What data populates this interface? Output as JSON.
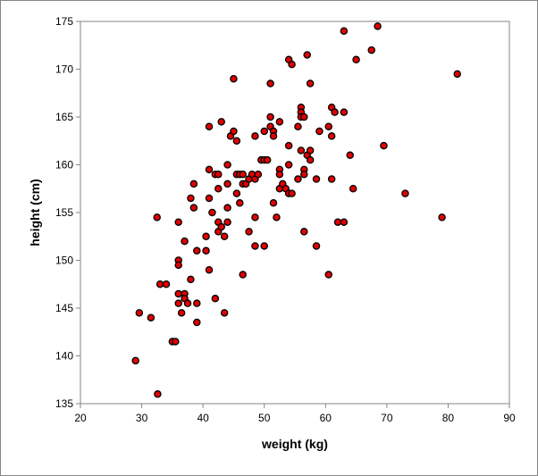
{
  "chart_data": {
    "type": "scatter",
    "title": "",
    "xlabel": "weight (kg)",
    "ylabel": "height (cm)",
    "xlim": [
      20,
      90
    ],
    "ylim": [
      135,
      175
    ],
    "xticks": [
      20,
      30,
      40,
      50,
      60,
      70,
      80,
      90
    ],
    "yticks": [
      135,
      140,
      145,
      150,
      155,
      160,
      165,
      170,
      175
    ],
    "grid": false,
    "legend": "none",
    "marker_fill": "#e00000",
    "marker_edge": "#000000",
    "points": [
      [
        29.0,
        139.5
      ],
      [
        29.6,
        144.5
      ],
      [
        31.5,
        144.0
      ],
      [
        32.5,
        154.5
      ],
      [
        32.6,
        136.0
      ],
      [
        33.0,
        147.5
      ],
      [
        34.0,
        147.5
      ],
      [
        35.0,
        141.5
      ],
      [
        35.5,
        141.5
      ],
      [
        36.0,
        154.0
      ],
      [
        36.0,
        150.0
      ],
      [
        36.0,
        149.5
      ],
      [
        36.0,
        146.5
      ],
      [
        36.0,
        145.5
      ],
      [
        36.5,
        144.5
      ],
      [
        37.0,
        146.5
      ],
      [
        37.0,
        152.0
      ],
      [
        37.0,
        146.0
      ],
      [
        37.5,
        145.5
      ],
      [
        38.0,
        156.5
      ],
      [
        38.0,
        148.0
      ],
      [
        38.5,
        158.0
      ],
      [
        38.5,
        155.5
      ],
      [
        39.0,
        151.0
      ],
      [
        39.0,
        145.5
      ],
      [
        39.0,
        143.5
      ],
      [
        40.5,
        152.5
      ],
      [
        40.5,
        151.0
      ],
      [
        41.0,
        164.0
      ],
      [
        41.0,
        159.5
      ],
      [
        41.0,
        156.5
      ],
      [
        41.0,
        149.0
      ],
      [
        41.5,
        155.0
      ],
      [
        42.0,
        159.0
      ],
      [
        42.0,
        146.0
      ],
      [
        42.5,
        159.0
      ],
      [
        42.5,
        157.5
      ],
      [
        42.5,
        154.0
      ],
      [
        42.5,
        153.0
      ],
      [
        43.0,
        164.5
      ],
      [
        43.0,
        153.5
      ],
      [
        43.5,
        152.5
      ],
      [
        43.5,
        144.5
      ],
      [
        44.0,
        160.0
      ],
      [
        44.0,
        158.0
      ],
      [
        44.0,
        155.5
      ],
      [
        44.0,
        154.0
      ],
      [
        44.5,
        163.0
      ],
      [
        45.0,
        169.0
      ],
      [
        45.0,
        163.5
      ],
      [
        45.5,
        162.5
      ],
      [
        45.5,
        159.0
      ],
      [
        45.5,
        157.0
      ],
      [
        46.0,
        159.0
      ],
      [
        46.0,
        156.0
      ],
      [
        46.5,
        159.0
      ],
      [
        46.5,
        158.0
      ],
      [
        46.5,
        148.5
      ],
      [
        47.0,
        158.0
      ],
      [
        47.5,
        158.5
      ],
      [
        47.5,
        153.0
      ],
      [
        48.0,
        159.0
      ],
      [
        48.5,
        163.0
      ],
      [
        48.5,
        158.5
      ],
      [
        48.5,
        154.5
      ],
      [
        48.5,
        151.5
      ],
      [
        49.0,
        159.0
      ],
      [
        49.5,
        160.5
      ],
      [
        50.0,
        163.5
      ],
      [
        50.0,
        160.5
      ],
      [
        50.0,
        151.5
      ],
      [
        50.5,
        160.5
      ],
      [
        51.0,
        168.5
      ],
      [
        51.0,
        165.0
      ],
      [
        51.0,
        164.0
      ],
      [
        51.5,
        163.5
      ],
      [
        51.5,
        163.0
      ],
      [
        51.5,
        156.0
      ],
      [
        52.0,
        154.5
      ],
      [
        52.5,
        164.5
      ],
      [
        52.5,
        159.5
      ],
      [
        52.5,
        159.0
      ],
      [
        52.5,
        157.5
      ],
      [
        53.0,
        158.0
      ],
      [
        53.5,
        157.5
      ],
      [
        54.0,
        171.0
      ],
      [
        54.0,
        162.0
      ],
      [
        54.0,
        160.0
      ],
      [
        54.0,
        157.0
      ],
      [
        54.5,
        170.5
      ],
      [
        54.5,
        157.0
      ],
      [
        55.5,
        164.0
      ],
      [
        55.5,
        158.5
      ],
      [
        56.0,
        166.0
      ],
      [
        56.0,
        165.5
      ],
      [
        56.0,
        165.0
      ],
      [
        56.0,
        161.5
      ],
      [
        56.5,
        165.0
      ],
      [
        56.5,
        159.5
      ],
      [
        56.5,
        159.0
      ],
      [
        56.5,
        153.0
      ],
      [
        57.0,
        171.5
      ],
      [
        57.0,
        161.0
      ],
      [
        57.5,
        168.5
      ],
      [
        57.5,
        161.5
      ],
      [
        57.5,
        160.5
      ],
      [
        58.5,
        158.5
      ],
      [
        58.5,
        151.5
      ],
      [
        59.0,
        163.5
      ],
      [
        60.5,
        164.0
      ],
      [
        60.5,
        148.5
      ],
      [
        61.0,
        166.0
      ],
      [
        61.0,
        163.0
      ],
      [
        61.0,
        158.5
      ],
      [
        61.5,
        165.5
      ],
      [
        62.0,
        154.0
      ],
      [
        63.0,
        174.0
      ],
      [
        63.0,
        165.5
      ],
      [
        63.0,
        154.0
      ],
      [
        64.0,
        161.0
      ],
      [
        64.5,
        157.5
      ],
      [
        65.0,
        171.0
      ],
      [
        67.5,
        172.0
      ],
      [
        68.5,
        174.5
      ],
      [
        69.5,
        162.0
      ],
      [
        73.0,
        157.0
      ],
      [
        79.0,
        154.5
      ],
      [
        81.5,
        169.5
      ]
    ]
  }
}
